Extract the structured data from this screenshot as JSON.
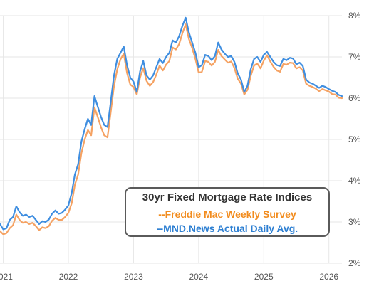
{
  "chart_data": {
    "type": "line",
    "title": "30yr Fixed Mortgage Rate Indices",
    "y_axis": {
      "min": 2,
      "max": 8,
      "ticks": [
        "2%",
        "3%",
        "4%",
        "5%",
        "6%",
        "7%",
        "8%"
      ],
      "position": "right"
    },
    "x_axis": {
      "min": 2020.95,
      "max": 2026.2,
      "ticks": [
        "2021",
        "2022",
        "2023",
        "2024",
        "2025",
        "2026"
      ]
    },
    "grid": true,
    "legend": {
      "placement": "bottom-right",
      "box": true
    },
    "colors": {
      "freddie": "#f5a263",
      "mnd": "#3f8ee0",
      "freddie_label": "#f28c1e",
      "mnd_label": "#2d7fd2"
    },
    "series": [
      {
        "name": "--Freddie Mac Weekly Survey",
        "points": [
          [
            2020.95,
            2.78
          ],
          [
            2021.0,
            2.7
          ],
          [
            2021.05,
            2.73
          ],
          [
            2021.1,
            2.85
          ],
          [
            2021.15,
            2.92
          ],
          [
            2021.2,
            3.18
          ],
          [
            2021.25,
            3.05
          ],
          [
            2021.3,
            2.98
          ],
          [
            2021.35,
            3.0
          ],
          [
            2021.4,
            2.95
          ],
          [
            2021.45,
            2.98
          ],
          [
            2021.5,
            2.9
          ],
          [
            2021.55,
            2.8
          ],
          [
            2021.6,
            2.87
          ],
          [
            2021.65,
            2.85
          ],
          [
            2021.7,
            2.9
          ],
          [
            2021.75,
            3.03
          ],
          [
            2021.8,
            3.1
          ],
          [
            2021.85,
            3.05
          ],
          [
            2021.9,
            3.05
          ],
          [
            2021.95,
            3.12
          ],
          [
            2022.0,
            3.22
          ],
          [
            2022.05,
            3.45
          ],
          [
            2022.1,
            3.9
          ],
          [
            2022.15,
            4.15
          ],
          [
            2022.2,
            4.67
          ],
          [
            2022.25,
            5.0
          ],
          [
            2022.3,
            5.23
          ],
          [
            2022.35,
            5.1
          ],
          [
            2022.4,
            5.78
          ],
          [
            2022.45,
            5.55
          ],
          [
            2022.5,
            5.3
          ],
          [
            2022.55,
            5.1
          ],
          [
            2022.6,
            5.05
          ],
          [
            2022.65,
            5.66
          ],
          [
            2022.7,
            6.29
          ],
          [
            2022.75,
            6.7
          ],
          [
            2022.8,
            6.94
          ],
          [
            2022.85,
            7.08
          ],
          [
            2022.9,
            6.61
          ],
          [
            2022.95,
            6.33
          ],
          [
            2023.0,
            6.27
          ],
          [
            2023.05,
            6.09
          ],
          [
            2023.1,
            6.5
          ],
          [
            2023.15,
            6.73
          ],
          [
            2023.2,
            6.42
          ],
          [
            2023.25,
            6.3
          ],
          [
            2023.3,
            6.39
          ],
          [
            2023.35,
            6.57
          ],
          [
            2023.4,
            6.79
          ],
          [
            2023.45,
            6.67
          ],
          [
            2023.5,
            6.81
          ],
          [
            2023.55,
            6.9
          ],
          [
            2023.6,
            7.23
          ],
          [
            2023.65,
            7.18
          ],
          [
            2023.7,
            7.31
          ],
          [
            2023.75,
            7.57
          ],
          [
            2023.8,
            7.79
          ],
          [
            2023.85,
            7.44
          ],
          [
            2023.9,
            7.22
          ],
          [
            2023.95,
            6.95
          ],
          [
            2024.0,
            6.62
          ],
          [
            2024.05,
            6.64
          ],
          [
            2024.1,
            6.9
          ],
          [
            2024.15,
            6.88
          ],
          [
            2024.2,
            6.79
          ],
          [
            2024.25,
            6.88
          ],
          [
            2024.3,
            7.17
          ],
          [
            2024.35,
            7.02
          ],
          [
            2024.4,
            6.94
          ],
          [
            2024.45,
            6.86
          ],
          [
            2024.5,
            6.89
          ],
          [
            2024.55,
            6.73
          ],
          [
            2024.6,
            6.47
          ],
          [
            2024.65,
            6.35
          ],
          [
            2024.7,
            6.09
          ],
          [
            2024.75,
            6.2
          ],
          [
            2024.8,
            6.54
          ],
          [
            2024.85,
            6.79
          ],
          [
            2024.9,
            6.84
          ],
          [
            2024.95,
            6.72
          ],
          [
            2025.0,
            6.91
          ],
          [
            2025.05,
            7.04
          ],
          [
            2025.1,
            6.89
          ],
          [
            2025.15,
            6.76
          ],
          [
            2025.2,
            6.67
          ],
          [
            2025.25,
            6.64
          ],
          [
            2025.3,
            6.83
          ],
          [
            2025.35,
            6.81
          ],
          [
            2025.4,
            6.86
          ],
          [
            2025.45,
            6.85
          ],
          [
            2025.5,
            6.72
          ],
          [
            2025.55,
            6.75
          ],
          [
            2025.6,
            6.67
          ],
          [
            2025.65,
            6.35
          ],
          [
            2025.7,
            6.3
          ],
          [
            2025.75,
            6.27
          ],
          [
            2025.8,
            6.23
          ],
          [
            2025.85,
            6.17
          ],
          [
            2025.9,
            6.22
          ],
          [
            2025.95,
            6.19
          ],
          [
            2026.0,
            6.16
          ],
          [
            2026.05,
            6.1
          ],
          [
            2026.1,
            6.09
          ],
          [
            2026.15,
            6.01
          ],
          [
            2026.2,
            6.0
          ]
        ]
      },
      {
        "name": "--MND.News Actual Daily Avg.",
        "points": [
          [
            2020.95,
            2.95
          ],
          [
            2021.0,
            2.82
          ],
          [
            2021.05,
            2.85
          ],
          [
            2021.1,
            3.05
          ],
          [
            2021.15,
            3.12
          ],
          [
            2021.2,
            3.38
          ],
          [
            2021.25,
            3.24
          ],
          [
            2021.3,
            3.15
          ],
          [
            2021.35,
            3.18
          ],
          [
            2021.4,
            3.12
          ],
          [
            2021.45,
            3.15
          ],
          [
            2021.5,
            3.05
          ],
          [
            2021.55,
            2.95
          ],
          [
            2021.6,
            3.02
          ],
          [
            2021.65,
            3.0
          ],
          [
            2021.7,
            3.06
          ],
          [
            2021.75,
            3.2
          ],
          [
            2021.8,
            3.28
          ],
          [
            2021.85,
            3.2
          ],
          [
            2021.9,
            3.22
          ],
          [
            2021.95,
            3.3
          ],
          [
            2022.0,
            3.4
          ],
          [
            2022.05,
            3.7
          ],
          [
            2022.1,
            4.15
          ],
          [
            2022.15,
            4.4
          ],
          [
            2022.2,
            4.95
          ],
          [
            2022.25,
            5.25
          ],
          [
            2022.3,
            5.5
          ],
          [
            2022.35,
            5.35
          ],
          [
            2022.4,
            6.05
          ],
          [
            2022.45,
            5.8
          ],
          [
            2022.5,
            5.55
          ],
          [
            2022.55,
            5.35
          ],
          [
            2022.6,
            5.3
          ],
          [
            2022.65,
            5.9
          ],
          [
            2022.7,
            6.55
          ],
          [
            2022.75,
            6.95
          ],
          [
            2022.8,
            7.1
          ],
          [
            2022.85,
            7.25
          ],
          [
            2022.9,
            6.8
          ],
          [
            2022.95,
            6.5
          ],
          [
            2023.0,
            6.4
          ],
          [
            2023.05,
            6.15
          ],
          [
            2023.1,
            6.65
          ],
          [
            2023.15,
            6.9
          ],
          [
            2023.2,
            6.55
          ],
          [
            2023.25,
            6.45
          ],
          [
            2023.3,
            6.55
          ],
          [
            2023.35,
            6.75
          ],
          [
            2023.4,
            6.95
          ],
          [
            2023.45,
            6.85
          ],
          [
            2023.5,
            7.0
          ],
          [
            2023.55,
            7.1
          ],
          [
            2023.6,
            7.4
          ],
          [
            2023.65,
            7.35
          ],
          [
            2023.7,
            7.5
          ],
          [
            2023.75,
            7.75
          ],
          [
            2023.8,
            7.95
          ],
          [
            2023.85,
            7.6
          ],
          [
            2023.9,
            7.35
          ],
          [
            2023.95,
            7.1
          ],
          [
            2024.0,
            6.75
          ],
          [
            2024.05,
            6.8
          ],
          [
            2024.1,
            7.05
          ],
          [
            2024.15,
            7.02
          ],
          [
            2024.2,
            6.92
          ],
          [
            2024.25,
            7.02
          ],
          [
            2024.3,
            7.35
          ],
          [
            2024.35,
            7.18
          ],
          [
            2024.4,
            7.08
          ],
          [
            2024.45,
            7.0
          ],
          [
            2024.5,
            7.02
          ],
          [
            2024.55,
            6.88
          ],
          [
            2024.6,
            6.6
          ],
          [
            2024.65,
            6.45
          ],
          [
            2024.7,
            6.15
          ],
          [
            2024.75,
            6.3
          ],
          [
            2024.8,
            6.7
          ],
          [
            2024.85,
            6.95
          ],
          [
            2024.9,
            7.0
          ],
          [
            2024.95,
            6.88
          ],
          [
            2025.0,
            7.05
          ],
          [
            2025.05,
            7.12
          ],
          [
            2025.1,
            7.0
          ],
          [
            2025.15,
            6.88
          ],
          [
            2025.2,
            6.8
          ],
          [
            2025.25,
            6.78
          ],
          [
            2025.3,
            6.95
          ],
          [
            2025.35,
            6.92
          ],
          [
            2025.4,
            6.98
          ],
          [
            2025.45,
            6.96
          ],
          [
            2025.5,
            6.82
          ],
          [
            2025.55,
            6.86
          ],
          [
            2025.6,
            6.78
          ],
          [
            2025.65,
            6.45
          ],
          [
            2025.7,
            6.38
          ],
          [
            2025.75,
            6.35
          ],
          [
            2025.8,
            6.3
          ],
          [
            2025.85,
            6.25
          ],
          [
            2025.9,
            6.3
          ],
          [
            2025.95,
            6.27
          ],
          [
            2026.0,
            6.22
          ],
          [
            2026.05,
            6.18
          ],
          [
            2026.1,
            6.15
          ],
          [
            2026.15,
            6.08
          ],
          [
            2026.2,
            6.05
          ]
        ]
      }
    ]
  }
}
